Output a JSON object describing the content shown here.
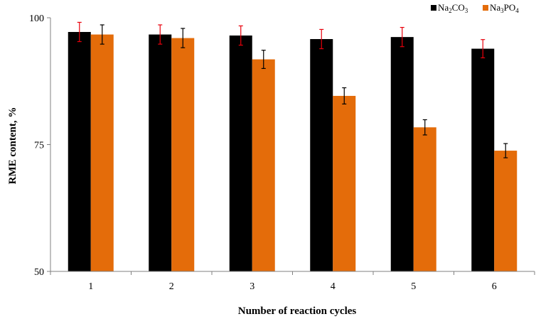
{
  "chart_data": {
    "type": "bar",
    "title": "",
    "xlabel": "Number of reaction cycles",
    "ylabel": "RME content, %",
    "categories": [
      "1",
      "2",
      "3",
      "4",
      "5",
      "6"
    ],
    "ylim": [
      50,
      100
    ],
    "yticks": [
      "50",
      "75",
      "100"
    ],
    "grid": false,
    "legend_position": "top-right",
    "series": [
      {
        "name": "Na2CO3",
        "name_parts": {
          "base": "Na",
          "sub1": "2",
          "mid": "CO",
          "sub2": "3"
        },
        "color": "#000000",
        "error_color": "#e8000b",
        "values": [
          97.2,
          96.7,
          96.5,
          95.8,
          96.2,
          93.9
        ],
        "errors": [
          1.9,
          1.9,
          1.9,
          1.9,
          1.9,
          1.8
        ]
      },
      {
        "name": "Na3PO4",
        "name_parts": {
          "base": "Na",
          "sub1": "3",
          "mid": "PO",
          "sub2": "4"
        },
        "color": "#e46c0a",
        "error_color": "#000000",
        "values": [
          96.7,
          96.0,
          91.8,
          84.6,
          78.4,
          73.8
        ],
        "errors": [
          1.9,
          1.9,
          1.8,
          1.6,
          1.5,
          1.4
        ]
      }
    ]
  }
}
